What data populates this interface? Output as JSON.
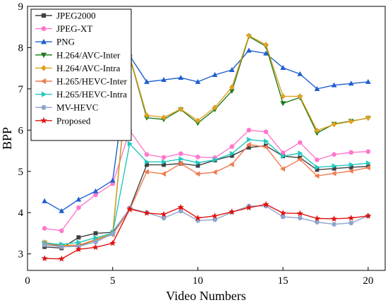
{
  "chart_data": {
    "type": "line",
    "title": "",
    "xlabel": "Video Numbers",
    "ylabel": "BPP",
    "xlim": [
      0,
      21
    ],
    "ylim": [
      2.6,
      9
    ],
    "xticks": [
      0,
      5,
      10,
      15,
      20
    ],
    "yticks": [
      3,
      4,
      5,
      6,
      7,
      8,
      9
    ],
    "grid": false,
    "legend_position": "top-left",
    "x": [
      1,
      2,
      3,
      4,
      5,
      6,
      7,
      8,
      9,
      10,
      11,
      12,
      13,
      14,
      15,
      16,
      17,
      18,
      19,
      20
    ],
    "series": [
      {
        "name": "JPEG2000",
        "color": "#404040",
        "marker": "square",
        "values": [
          3.17,
          3.14,
          3.4,
          3.5,
          3.52,
          4.1,
          5.16,
          5.16,
          5.19,
          5.14,
          5.27,
          5.38,
          5.58,
          5.62,
          5.37,
          5.33,
          5.04,
          5.07,
          5.1,
          5.12
        ]
      },
      {
        "name": "JPEG-XT",
        "color": "#ff77cc",
        "marker": "circle",
        "values": [
          3.62,
          3.56,
          4.12,
          4.43,
          4.7,
          5.99,
          5.41,
          5.34,
          5.43,
          5.35,
          5.33,
          5.6,
          6.0,
          5.96,
          5.45,
          5.7,
          5.28,
          5.41,
          5.46,
          5.48
        ]
      },
      {
        "name": "PNG",
        "color": "#1f5fd0",
        "marker": "triangle-up",
        "values": [
          4.28,
          4.04,
          4.32,
          4.52,
          4.78,
          7.8,
          7.17,
          7.22,
          7.27,
          7.17,
          7.34,
          7.46,
          7.93,
          7.86,
          7.51,
          7.36,
          7.0,
          7.09,
          7.13,
          7.17
        ]
      },
      {
        "name": "H.264/AVC-Inter",
        "color": "#1a7a1a",
        "marker": "triangle-down",
        "values": [
          3.27,
          3.2,
          3.2,
          3.33,
          3.48,
          7.78,
          6.3,
          6.26,
          6.5,
          6.17,
          6.5,
          6.95,
          8.27,
          8.03,
          6.65,
          6.79,
          5.93,
          6.15,
          6.22,
          6.29
        ]
      },
      {
        "name": "H.264/AVC-Intra",
        "color": "#e0a020",
        "marker": "diamond",
        "values": [
          3.28,
          3.21,
          3.21,
          3.35,
          3.5,
          7.8,
          6.36,
          6.31,
          6.51,
          6.23,
          6.55,
          7.04,
          8.29,
          8.07,
          6.82,
          6.82,
          5.99,
          6.14,
          6.21,
          6.3
        ]
      },
      {
        "name": "H.265/HEVC-Inter",
        "color": "#f07a50",
        "marker": "triangle-left",
        "values": [
          3.25,
          3.18,
          3.21,
          3.33,
          3.47,
          4.07,
          4.99,
          4.94,
          5.19,
          4.94,
          4.98,
          5.17,
          5.65,
          5.59,
          5.06,
          5.29,
          4.89,
          4.95,
          5.01,
          5.09
        ]
      },
      {
        "name": "H.265/HEVC-Intra",
        "color": "#20c8c0",
        "marker": "triangle-right",
        "values": [
          3.26,
          3.23,
          3.28,
          3.39,
          3.5,
          5.67,
          5.23,
          5.23,
          5.3,
          5.21,
          5.28,
          5.43,
          5.77,
          5.73,
          5.37,
          5.44,
          5.1,
          5.13,
          5.16,
          5.2
        ]
      },
      {
        "name": "MV-HEVC",
        "color": "#8ea6cc",
        "marker": "hexagon",
        "values": [
          3.22,
          3.17,
          3.18,
          3.29,
          3.49,
          4.11,
          4.0,
          3.87,
          4.04,
          3.81,
          3.83,
          4.01,
          4.16,
          4.16,
          3.9,
          3.87,
          3.77,
          3.72,
          3.75,
          3.92
        ]
      },
      {
        "name": "Proposed",
        "color": "#e01010",
        "marker": "star",
        "values": [
          2.89,
          2.88,
          3.11,
          3.16,
          3.26,
          4.09,
          3.99,
          3.96,
          4.13,
          3.87,
          3.92,
          4.02,
          4.12,
          4.2,
          3.99,
          3.98,
          3.86,
          3.85,
          3.87,
          3.92
        ]
      }
    ]
  }
}
